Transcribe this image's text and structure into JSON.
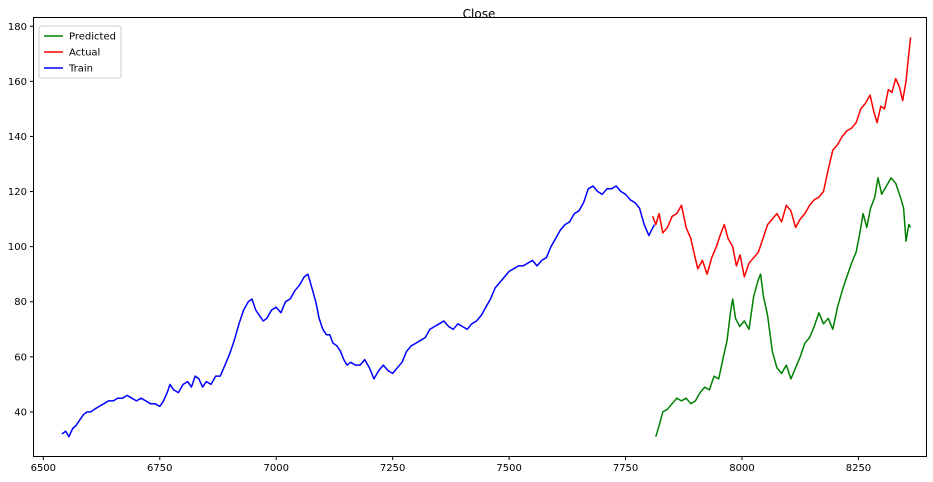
{
  "chart_data": {
    "type": "line",
    "title": "Close",
    "xlabel": "",
    "ylabel": "",
    "xlim": [
      6480,
      8395
    ],
    "ylim": [
      24,
      183
    ],
    "x_ticks": [
      6500,
      6750,
      7000,
      7250,
      7500,
      7750,
      8000,
      8250
    ],
    "y_ticks": [
      40,
      60,
      80,
      100,
      120,
      140,
      160,
      180
    ],
    "grid": false,
    "legend_position": "top-left",
    "series": [
      {
        "name": "Predicted",
        "color": "#008000",
        "points": [
          [
            7815,
            31
          ],
          [
            7822,
            35
          ],
          [
            7830,
            40
          ],
          [
            7840,
            41
          ],
          [
            7850,
            43
          ],
          [
            7860,
            45
          ],
          [
            7870,
            44
          ],
          [
            7880,
            45
          ],
          [
            7890,
            43
          ],
          [
            7900,
            44
          ],
          [
            7910,
            47
          ],
          [
            7920,
            49
          ],
          [
            7930,
            48
          ],
          [
            7940,
            53
          ],
          [
            7950,
            52
          ],
          [
            7960,
            60
          ],
          [
            7968,
            66
          ],
          [
            7975,
            76
          ],
          [
            7980,
            81
          ],
          [
            7986,
            74
          ],
          [
            7995,
            71
          ],
          [
            8005,
            73
          ],
          [
            8015,
            70
          ],
          [
            8025,
            82
          ],
          [
            8035,
            88
          ],
          [
            8040,
            90
          ],
          [
            8046,
            82
          ],
          [
            8055,
            75
          ],
          [
            8065,
            62
          ],
          [
            8075,
            56
          ],
          [
            8085,
            54
          ],
          [
            8095,
            57
          ],
          [
            8105,
            52
          ],
          [
            8115,
            56
          ],
          [
            8125,
            60
          ],
          [
            8135,
            65
          ],
          [
            8145,
            67
          ],
          [
            8155,
            71
          ],
          [
            8165,
            76
          ],
          [
            8175,
            72
          ],
          [
            8185,
            74
          ],
          [
            8195,
            70
          ],
          [
            8205,
            78
          ],
          [
            8215,
            84
          ],
          [
            8225,
            89
          ],
          [
            8235,
            94
          ],
          [
            8245,
            98
          ],
          [
            8252,
            104
          ],
          [
            8260,
            112
          ],
          [
            8268,
            107
          ],
          [
            8276,
            114
          ],
          [
            8285,
            118
          ],
          [
            8292,
            125
          ],
          [
            8300,
            119
          ],
          [
            8310,
            122
          ],
          [
            8320,
            125
          ],
          [
            8330,
            123
          ],
          [
            8340,
            118
          ],
          [
            8347,
            114
          ],
          [
            8352,
            102
          ],
          [
            8358,
            108
          ],
          [
            8362,
            107
          ]
        ]
      },
      {
        "name": "Actual",
        "color": "#ff0000",
        "points": [
          [
            7808,
            111
          ],
          [
            7815,
            108
          ],
          [
            7822,
            112
          ],
          [
            7830,
            105
          ],
          [
            7840,
            107
          ],
          [
            7850,
            111
          ],
          [
            7860,
            112
          ],
          [
            7870,
            115
          ],
          [
            7880,
            107
          ],
          [
            7890,
            103
          ],
          [
            7898,
            97
          ],
          [
            7905,
            92
          ],
          [
            7915,
            95
          ],
          [
            7925,
            90
          ],
          [
            7935,
            96
          ],
          [
            7945,
            100
          ],
          [
            7955,
            105
          ],
          [
            7962,
            108
          ],
          [
            7970,
            103
          ],
          [
            7980,
            100
          ],
          [
            7988,
            93
          ],
          [
            7996,
            97
          ],
          [
            8005,
            89
          ],
          [
            8015,
            94
          ],
          [
            8025,
            96
          ],
          [
            8035,
            98
          ],
          [
            8045,
            103
          ],
          [
            8055,
            108
          ],
          [
            8065,
            110
          ],
          [
            8075,
            112
          ],
          [
            8085,
            109
          ],
          [
            8095,
            115
          ],
          [
            8105,
            113
          ],
          [
            8115,
            107
          ],
          [
            8125,
            110
          ],
          [
            8135,
            112
          ],
          [
            8145,
            115
          ],
          [
            8155,
            117
          ],
          [
            8165,
            118
          ],
          [
            8175,
            120
          ],
          [
            8185,
            128
          ],
          [
            8195,
            135
          ],
          [
            8205,
            137
          ],
          [
            8215,
            140
          ],
          [
            8225,
            142
          ],
          [
            8235,
            143
          ],
          [
            8245,
            145
          ],
          [
            8255,
            150
          ],
          [
            8265,
            152
          ],
          [
            8275,
            155
          ],
          [
            8283,
            149
          ],
          [
            8290,
            145
          ],
          [
            8298,
            151
          ],
          [
            8306,
            150
          ],
          [
            8314,
            157
          ],
          [
            8322,
            156
          ],
          [
            8330,
            161
          ],
          [
            8338,
            158
          ],
          [
            8345,
            153
          ],
          [
            8352,
            160
          ],
          [
            8358,
            170
          ],
          [
            8362,
            176
          ]
        ]
      },
      {
        "name": "Train",
        "color": "#0000ff",
        "points": [
          [
            6540,
            32
          ],
          [
            6548,
            33
          ],
          [
            6555,
            31
          ],
          [
            6563,
            34
          ],
          [
            6570,
            35
          ],
          [
            6578,
            37
          ],
          [
            6586,
            39
          ],
          [
            6594,
            40
          ],
          [
            6602,
            40
          ],
          [
            6610,
            41
          ],
          [
            6620,
            42
          ],
          [
            6630,
            43
          ],
          [
            6640,
            44
          ],
          [
            6650,
            44
          ],
          [
            6660,
            45
          ],
          [
            6670,
            45
          ],
          [
            6680,
            46
          ],
          [
            6690,
            45
          ],
          [
            6700,
            44
          ],
          [
            6710,
            45
          ],
          [
            6720,
            44
          ],
          [
            6730,
            43
          ],
          [
            6740,
            43
          ],
          [
            6750,
            42
          ],
          [
            6758,
            44
          ],
          [
            6766,
            47
          ],
          [
            6772,
            50
          ],
          [
            6780,
            48
          ],
          [
            6790,
            47
          ],
          [
            6800,
            50
          ],
          [
            6810,
            51
          ],
          [
            6818,
            49
          ],
          [
            6826,
            53
          ],
          [
            6834,
            52
          ],
          [
            6842,
            49
          ],
          [
            6850,
            51
          ],
          [
            6860,
            50
          ],
          [
            6870,
            53
          ],
          [
            6880,
            53
          ],
          [
            6890,
            57
          ],
          [
            6900,
            61
          ],
          [
            6910,
            66
          ],
          [
            6920,
            72
          ],
          [
            6930,
            77
          ],
          [
            6940,
            80
          ],
          [
            6948,
            81
          ],
          [
            6956,
            77
          ],
          [
            6964,
            75
          ],
          [
            6972,
            73
          ],
          [
            6980,
            74
          ],
          [
            6990,
            77
          ],
          [
            7000,
            78
          ],
          [
            7010,
            76
          ],
          [
            7020,
            80
          ],
          [
            7030,
            81
          ],
          [
            7040,
            84
          ],
          [
            7050,
            86
          ],
          [
            7060,
            89
          ],
          [
            7068,
            90
          ],
          [
            7075,
            86
          ],
          [
            7085,
            80
          ],
          [
            7092,
            74
          ],
          [
            7100,
            70
          ],
          [
            7108,
            68
          ],
          [
            7115,
            68
          ],
          [
            7122,
            65
          ],
          [
            7130,
            64
          ],
          [
            7138,
            62
          ],
          [
            7145,
            59
          ],
          [
            7152,
            57
          ],
          [
            7160,
            58
          ],
          [
            7170,
            57
          ],
          [
            7180,
            57
          ],
          [
            7190,
            59
          ],
          [
            7200,
            56
          ],
          [
            7210,
            52
          ],
          [
            7220,
            55
          ],
          [
            7230,
            57
          ],
          [
            7240,
            55
          ],
          [
            7250,
            54
          ],
          [
            7260,
            56
          ],
          [
            7270,
            58
          ],
          [
            7280,
            62
          ],
          [
            7290,
            64
          ],
          [
            7300,
            65
          ],
          [
            7310,
            66
          ],
          [
            7320,
            67
          ],
          [
            7330,
            70
          ],
          [
            7340,
            71
          ],
          [
            7350,
            72
          ],
          [
            7360,
            73
          ],
          [
            7370,
            71
          ],
          [
            7380,
            70
          ],
          [
            7390,
            72
          ],
          [
            7400,
            71
          ],
          [
            7410,
            70
          ],
          [
            7420,
            72
          ],
          [
            7430,
            73
          ],
          [
            7440,
            75
          ],
          [
            7450,
            78
          ],
          [
            7460,
            81
          ],
          [
            7470,
            85
          ],
          [
            7480,
            87
          ],
          [
            7490,
            89
          ],
          [
            7500,
            91
          ],
          [
            7510,
            92
          ],
          [
            7520,
            93
          ],
          [
            7530,
            93
          ],
          [
            7540,
            94
          ],
          [
            7550,
            95
          ],
          [
            7560,
            93
          ],
          [
            7570,
            95
          ],
          [
            7580,
            96
          ],
          [
            7590,
            100
          ],
          [
            7600,
            103
          ],
          [
            7610,
            106
          ],
          [
            7620,
            108
          ],
          [
            7630,
            109
          ],
          [
            7640,
            112
          ],
          [
            7650,
            113
          ],
          [
            7660,
            116
          ],
          [
            7670,
            121
          ],
          [
            7680,
            122
          ],
          [
            7690,
            120
          ],
          [
            7700,
            119
          ],
          [
            7710,
            121
          ],
          [
            7720,
            121
          ],
          [
            7730,
            122
          ],
          [
            7740,
            120
          ],
          [
            7750,
            119
          ],
          [
            7760,
            117
          ],
          [
            7770,
            116
          ],
          [
            7780,
            114
          ],
          [
            7790,
            108
          ],
          [
            7800,
            104
          ],
          [
            7806,
            106
          ],
          [
            7812,
            108
          ]
        ]
      }
    ]
  }
}
